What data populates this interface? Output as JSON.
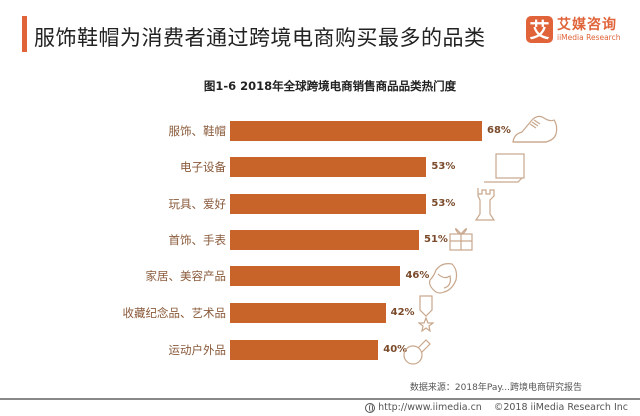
{
  "header": {
    "title": "服饰鞋帽为消费者通过跨境电商购买最多的品类",
    "accent_color": "#e0633a"
  },
  "logo": {
    "mark": "艾",
    "name_cn": "艾媒咨询",
    "name_en": "iiMedia Research"
  },
  "chart_data": {
    "type": "bar",
    "orientation": "horizontal",
    "title": "图1-6  2018年全球跨境电商销售商品品类热门度",
    "categories": [
      "服饰、鞋帽",
      "电子设备",
      "玩具、爱好",
      "首饰、手表",
      "家居、美容产品",
      "收藏纪念品、艺术品",
      "运动户外品"
    ],
    "values": [
      68,
      53,
      53,
      51,
      46,
      42,
      40
    ],
    "value_labels": [
      "68%",
      "53%",
      "53%",
      "51%",
      "46%",
      "42%",
      "40%"
    ],
    "icons": [
      "sneaker-icon",
      "laptop-icon",
      "chess-rook-icon",
      "gift-box-icon",
      "woman-face-icon",
      "medal-icon",
      "whistle-icon"
    ],
    "bar_color": "#c8632a",
    "xlabel": "",
    "ylabel": "",
    "xlim": [
      0,
      100
    ],
    "grid": false,
    "legend": "none"
  },
  "source": "数据来源：2018年Pay...跨境电商研究报告",
  "footer": {
    "url": "http://www.iimedia.cn",
    "copyright": "©2018  iiMedia Research  Inc"
  }
}
